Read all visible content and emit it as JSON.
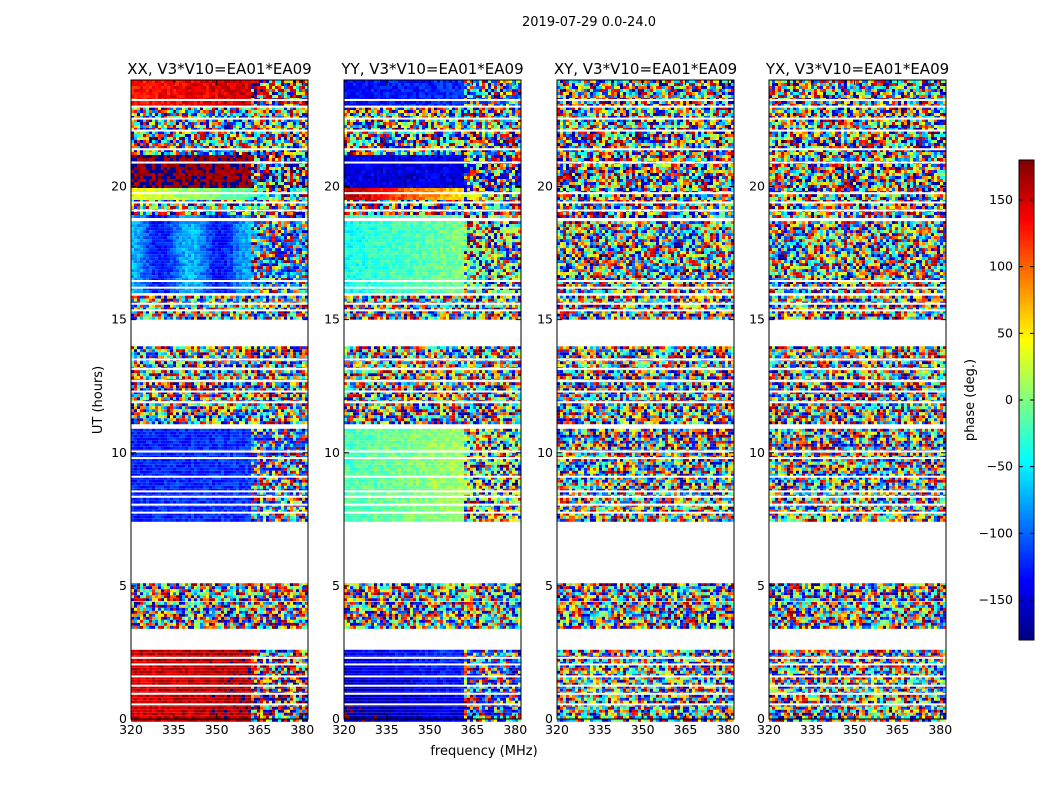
{
  "figure": {
    "title": "2019-07-29 0.0-24.0"
  },
  "chart_data": {
    "type": "heatmap",
    "xlabel": "frequency (MHz)",
    "ylabel": "UT (hours)",
    "xlim": [
      320,
      382
    ],
    "ylim": [
      0,
      24
    ],
    "xticks": [
      "320",
      "335",
      "350",
      "365",
      "380"
    ],
    "yticks": [
      "0",
      "5",
      "10",
      "15",
      "20"
    ],
    "panels": [
      {
        "title": "XX, V3*V10=EA01*EA09",
        "mode": "XX"
      },
      {
        "title": "YY, V3*V10=EA01*EA09",
        "mode": "YY"
      },
      {
        "title": "XY, V3*V10=EA01*EA09",
        "mode": "noise"
      },
      {
        "title": "YX, V3*V10=EA01*EA09",
        "mode": "noise"
      }
    ],
    "colorbar": {
      "label": "phase (deg.)",
      "range": [
        -180,
        180
      ],
      "ticks": [
        "150",
        "100",
        "50",
        "0",
        "−50",
        "−100",
        "−150"
      ],
      "tick_values": [
        150,
        100,
        50,
        0,
        -50,
        -100,
        -150
      ],
      "colormap": "jet"
    },
    "data_hour_ranges": [
      [
        0.0,
        2.6
      ],
      [
        3.4,
        4.4
      ],
      [
        4.5,
        5.1
      ],
      [
        7.5,
        10.9
      ],
      [
        11.1,
        14.0
      ],
      [
        15.1,
        15.9
      ],
      [
        16.1,
        18.7
      ],
      [
        18.9,
        24.0
      ]
    ],
    "blank_hour_lines": [
      0.55,
      0.95,
      1.25,
      1.6,
      2.05,
      2.3,
      7.75,
      8.05,
      8.35,
      8.55,
      9.1,
      9.8,
      10.05,
      11.9,
      12.3,
      12.7,
      13.15,
      13.5,
      15.35,
      15.6,
      16.2,
      16.45,
      19.1,
      19.4,
      19.75,
      20.9,
      21.4,
      22.1,
      22.55,
      23.0,
      23.25
    ]
  }
}
